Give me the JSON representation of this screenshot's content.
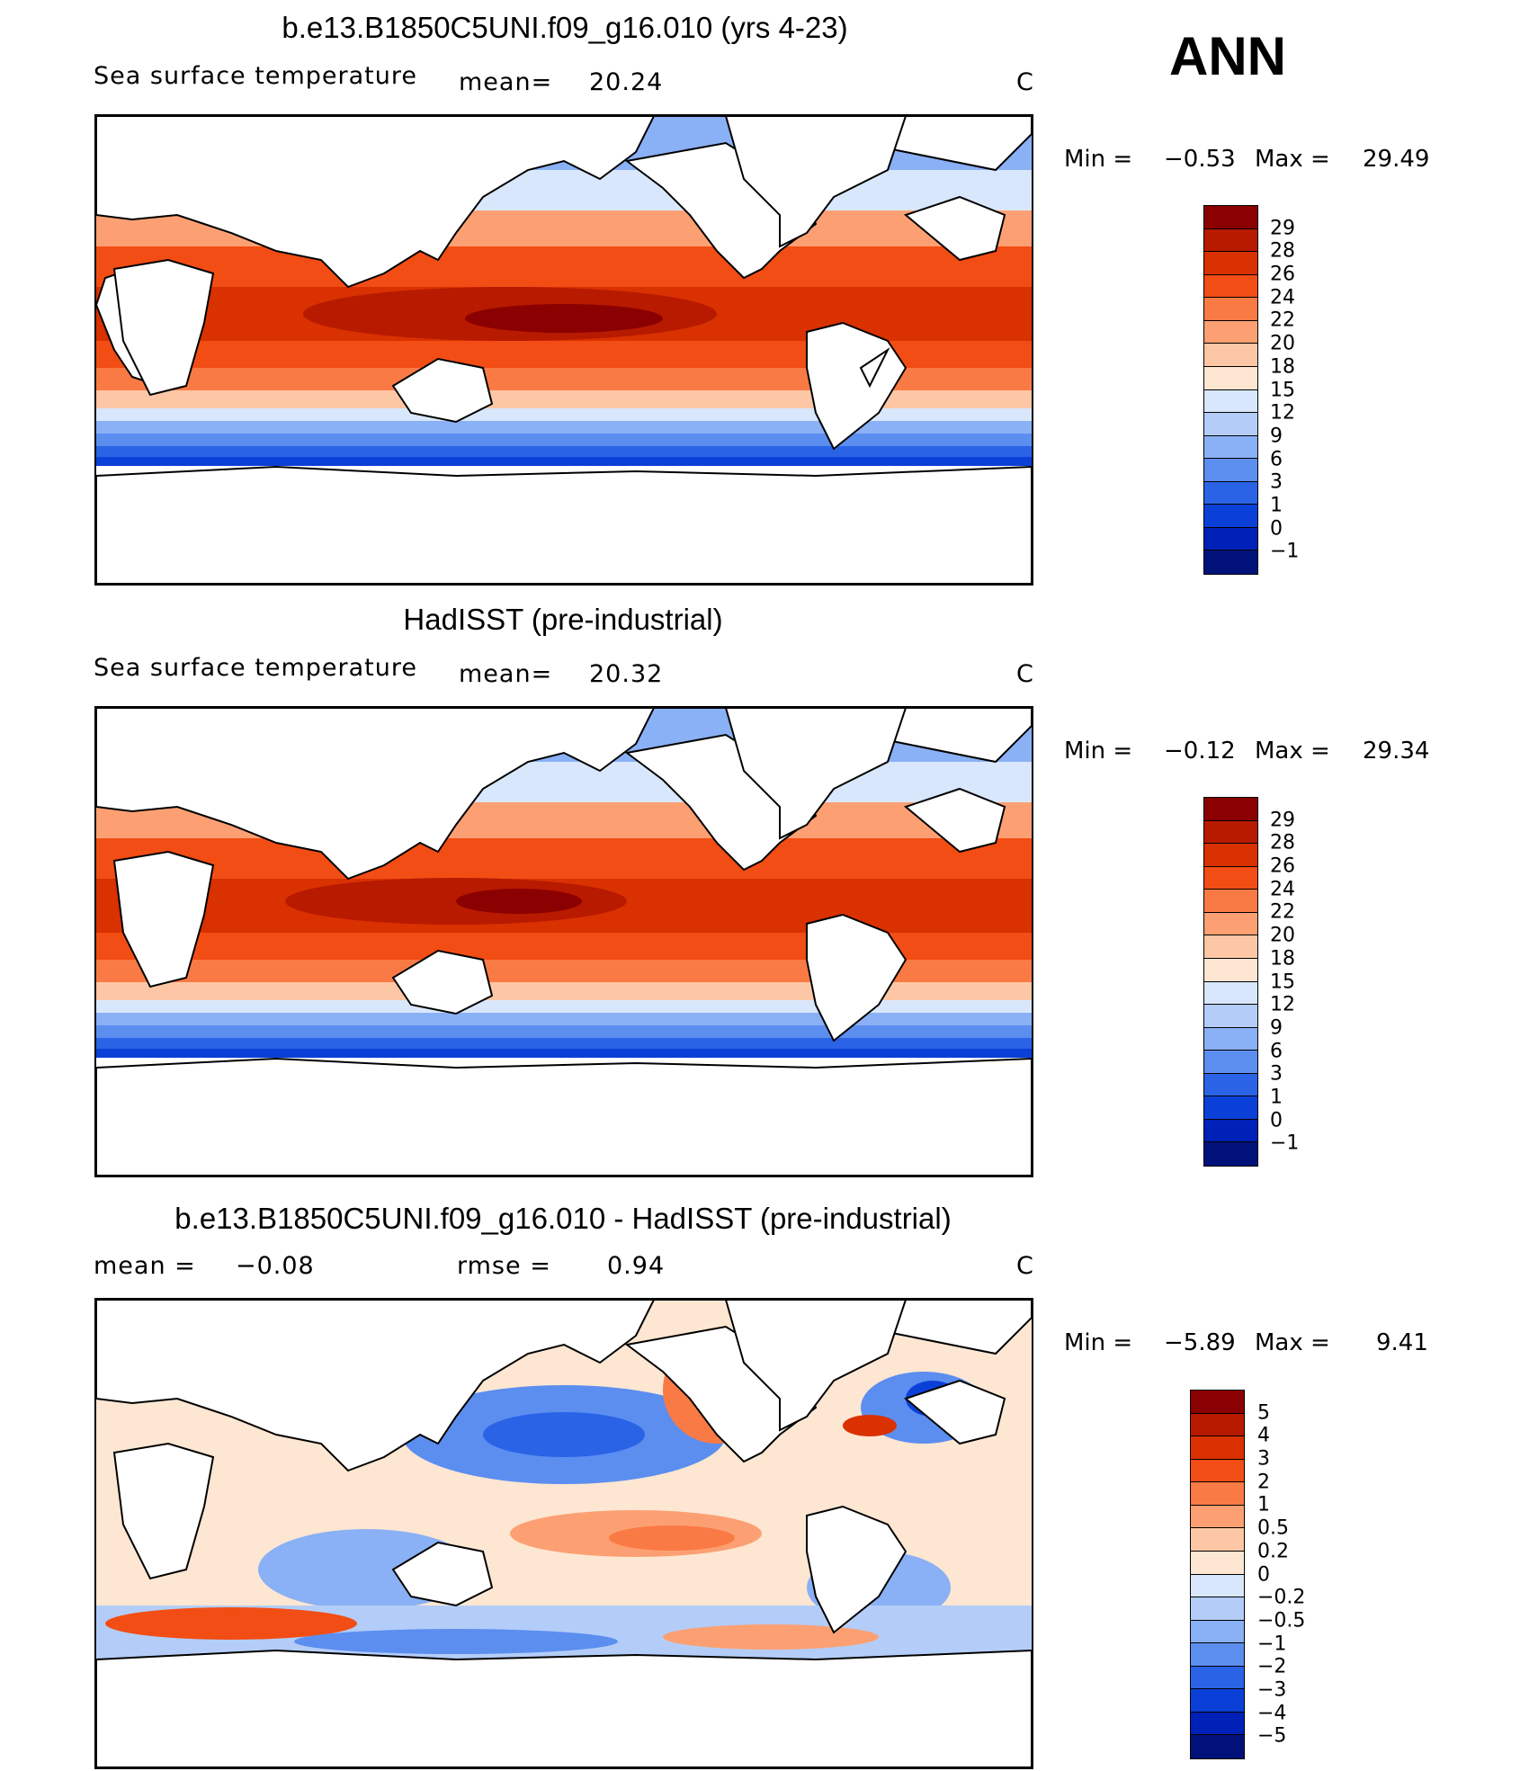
{
  "season": "ANN",
  "panels": [
    {
      "title": "b.e13.B1850C5UNI.f09_g16.010 (yrs 4-23)",
      "variable": "Sea surface temperature",
      "stat1_label": "mean=",
      "stat1_value": "20.24",
      "units": "C",
      "min_label": "Min =",
      "min_value": "−0.53",
      "max_label": "Max =",
      "max_value": "29.49",
      "colorbar": {
        "labels": [
          "29",
          "28",
          "26",
          "24",
          "22",
          "20",
          "18",
          "15",
          "12",
          "9",
          "6",
          "3",
          "1",
          "0",
          "−1"
        ],
        "colors": [
          "#8b0000",
          "#b81a00",
          "#d93100",
          "#f24d14",
          "#fa7a45",
          "#fca073",
          "#fdc7a5",
          "#fde6d2",
          "#d8e7fb",
          "#b3cdf8",
          "#8ab0f5",
          "#5c8ef0",
          "#2a63e6",
          "#0b40d8",
          "#0021b8",
          "#00127a"
        ]
      }
    },
    {
      "title": "HadISST (pre-industrial)",
      "variable": "Sea surface temperature",
      "stat1_label": "mean=",
      "stat1_value": "20.32",
      "units": "C",
      "min_label": "Min =",
      "min_value": "−0.12",
      "max_label": "Max =",
      "max_value": "29.34",
      "colorbar": {
        "labels": [
          "29",
          "28",
          "26",
          "24",
          "22",
          "20",
          "18",
          "15",
          "12",
          "9",
          "6",
          "3",
          "1",
          "0",
          "−1"
        ],
        "colors": [
          "#8b0000",
          "#b81a00",
          "#d93100",
          "#f24d14",
          "#fa7a45",
          "#fca073",
          "#fdc7a5",
          "#fde6d2",
          "#d8e7fb",
          "#b3cdf8",
          "#8ab0f5",
          "#5c8ef0",
          "#2a63e6",
          "#0b40d8",
          "#0021b8",
          "#00127a"
        ]
      }
    },
    {
      "title": "b.e13.B1850C5UNI.f09_g16.010 - HadISST (pre-industrial)",
      "stat1_label": "mean =",
      "stat1_value": "−0.08",
      "stat2_label": "rmse =",
      "stat2_value": "0.94",
      "units": "C",
      "min_label": "Min =",
      "min_value": "−5.89",
      "max_label": "Max =",
      "max_value": "9.41",
      "colorbar": {
        "labels": [
          "5",
          "4",
          "3",
          "2",
          "1",
          "0.5",
          "0.2",
          "0",
          "−0.2",
          "−0.5",
          "−1",
          "−2",
          "−3",
          "−4",
          "−5"
        ],
        "colors": [
          "#8b0000",
          "#b81a00",
          "#d93100",
          "#f24d14",
          "#fa7a45",
          "#fca073",
          "#fdc7a5",
          "#fde6d2",
          "#d8e7fb",
          "#b3cdf8",
          "#8ab0f5",
          "#5c8ef0",
          "#2a63e6",
          "#0b40d8",
          "#0021b8",
          "#00127a"
        ]
      }
    }
  ]
}
